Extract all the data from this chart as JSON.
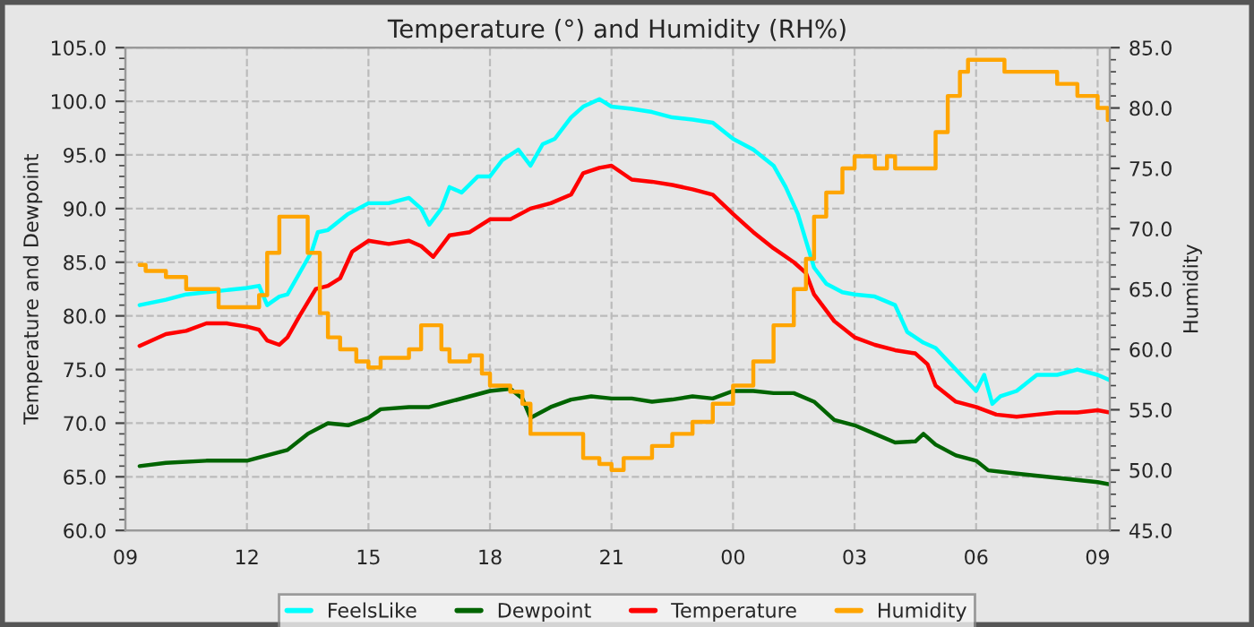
{
  "chart_data": {
    "type": "line",
    "title": "Temperature (°) and Humidity (RH%)",
    "ylabel": "Temperature and Dewpoint",
    "y2label": "Humidity",
    "xlim": [
      9,
      33.3
    ],
    "xticks": [
      {
        "value": 9,
        "label": "09"
      },
      {
        "value": 12,
        "label": "12"
      },
      {
        "value": 15,
        "label": "15"
      },
      {
        "value": 18,
        "label": "18"
      },
      {
        "value": 21,
        "label": "21"
      },
      {
        "value": 24,
        "label": "00"
      },
      {
        "value": 27,
        "label": "03"
      },
      {
        "value": 30,
        "label": "06"
      },
      {
        "value": 33,
        "label": "09"
      }
    ],
    "ylim": [
      60,
      105
    ],
    "yticks": [
      {
        "value": 60,
        "label": "60.0"
      },
      {
        "value": 65,
        "label": "65.0"
      },
      {
        "value": 70,
        "label": "70.0"
      },
      {
        "value": 75,
        "label": "75.0"
      },
      {
        "value": 80,
        "label": "80.0"
      },
      {
        "value": 85,
        "label": "85.0"
      },
      {
        "value": 90,
        "label": "90.0"
      },
      {
        "value": 95,
        "label": "95.0"
      },
      {
        "value": 100,
        "label": "100.0"
      },
      {
        "value": 105,
        "label": "105.0"
      }
    ],
    "y2lim": [
      45,
      85
    ],
    "y2ticks": [
      {
        "value": 45,
        "label": "45.0"
      },
      {
        "value": 50,
        "label": "50.0"
      },
      {
        "value": 55,
        "label": "55.0"
      },
      {
        "value": 60,
        "label": "60.0"
      },
      {
        "value": 65,
        "label": "65.0"
      },
      {
        "value": 70,
        "label": "70.0"
      },
      {
        "value": 75,
        "label": "75.0"
      },
      {
        "value": 80,
        "label": "80.0"
      },
      {
        "value": 85,
        "label": "85.0"
      }
    ],
    "grid": true,
    "legend": "bottom",
    "line_style": "solid",
    "marker": "none",
    "series": [
      {
        "name": "FeelsLike",
        "color": "#00ffff",
        "x": [
          9.35,
          10,
          10.5,
          11,
          11.5,
          12,
          12.3,
          12.5,
          12.8,
          13,
          13.3,
          13.6,
          13.75,
          14,
          14.5,
          15,
          15.5,
          16,
          16.3,
          16.5,
          16.8,
          17,
          17.3,
          17.7,
          18,
          18.3,
          18.7,
          19,
          19.3,
          19.6,
          20,
          20.3,
          20.7,
          21,
          21.5,
          22,
          22.5,
          23,
          23.5,
          24,
          24.5,
          25,
          25.3,
          25.6,
          25.8,
          26,
          26.3,
          26.7,
          27,
          27.5,
          28,
          28.3,
          28.7,
          29,
          29.5,
          30,
          30.2,
          30.4,
          30.6,
          31,
          31.5,
          32,
          32.5,
          33,
          33.3
        ],
        "values": [
          81.0,
          81.5,
          82,
          82.2,
          82.4,
          82.6,
          82.8,
          81.0,
          81.8,
          82,
          84,
          86,
          87.8,
          88,
          89.5,
          90.5,
          90.5,
          91,
          90,
          88.5,
          90,
          92,
          91.5,
          93,
          93,
          94.5,
          95.5,
          94,
          96,
          96.5,
          98.5,
          99.5,
          100.2,
          99.5,
          99.3,
          99,
          98.5,
          98.3,
          98,
          96.5,
          95.5,
          94,
          92,
          89.5,
          87,
          84.5,
          83,
          82.2,
          82,
          81.8,
          81,
          78.5,
          77.5,
          77,
          75,
          73,
          74.5,
          71.8,
          72.5,
          73,
          74.5,
          74.5,
          75,
          74.5,
          74
        ]
      },
      {
        "name": "Dewpoint",
        "color": "#006400",
        "x": [
          9.35,
          10,
          11,
          11.5,
          12,
          12.5,
          13,
          13.5,
          14,
          14.5,
          15,
          15.3,
          16,
          16.5,
          17,
          17.5,
          18,
          18.5,
          18.8,
          19,
          19.5,
          20,
          20.5,
          21,
          21.5,
          22,
          22.5,
          23,
          23.5,
          24,
          24.5,
          25,
          25.5,
          26,
          26.5,
          27,
          27.5,
          28,
          28.5,
          28.7,
          29,
          29.5,
          30,
          30.3,
          31,
          32,
          33,
          33.3
        ],
        "values": [
          66,
          66.3,
          66.5,
          66.5,
          66.5,
          67,
          67.5,
          69,
          70,
          69.8,
          70.5,
          71.3,
          71.5,
          71.5,
          72,
          72.5,
          73,
          73.2,
          72.3,
          70.5,
          71.5,
          72.2,
          72.5,
          72.3,
          72.3,
          72,
          72.2,
          72.5,
          72.3,
          73,
          73,
          72.8,
          72.8,
          72,
          70.3,
          69.8,
          69,
          68.2,
          68.3,
          69,
          68,
          67,
          66.5,
          65.6,
          65.3,
          64.9,
          64.5,
          64.3
        ]
      },
      {
        "name": "Temperature",
        "color": "#ff0000",
        "x": [
          9.35,
          10,
          10.5,
          11,
          11.5,
          12,
          12.3,
          12.5,
          12.8,
          13,
          13.3,
          13.7,
          14,
          14.3,
          14.6,
          15,
          15.5,
          16,
          16.3,
          16.6,
          17,
          17.5,
          18,
          18.5,
          19,
          19.5,
          20,
          20.3,
          20.7,
          21,
          21.5,
          22,
          22.5,
          23,
          23.5,
          24,
          24.5,
          25,
          25.5,
          25.8,
          26,
          26.5,
          27,
          27.5,
          28,
          28.5,
          28.8,
          29,
          29.5,
          30,
          30.5,
          31,
          31.5,
          32,
          32.5,
          33,
          33.3
        ],
        "values": [
          77.2,
          78.3,
          78.6,
          79.3,
          79.3,
          79,
          78.7,
          77.7,
          77.3,
          78,
          80,
          82.5,
          82.8,
          83.5,
          86,
          87,
          86.7,
          87,
          86.5,
          85.5,
          87.5,
          87.8,
          89,
          89,
          90,
          90.5,
          91.3,
          93.3,
          93.8,
          94,
          92.7,
          92.5,
          92.2,
          91.8,
          91.3,
          89.5,
          87.8,
          86.3,
          85,
          84,
          82,
          79.5,
          78,
          77.3,
          76.8,
          76.5,
          75.5,
          73.5,
          72,
          71.5,
          70.8,
          70.6,
          70.8,
          71,
          71,
          71.2,
          71
        ]
      },
      {
        "name": "Humidity",
        "color": "#ffa500",
        "type": "step",
        "axis": "y2",
        "x": [
          9.35,
          9.5,
          10,
          10.5,
          11,
          11.3,
          12,
          12.3,
          12.5,
          12.8,
          13.2,
          13.5,
          13.8,
          14,
          14.3,
          14.7,
          15,
          15.3,
          16,
          16.3,
          16.6,
          16.8,
          17,
          17.5,
          17.8,
          18,
          18.5,
          18.8,
          19,
          19.5,
          20,
          20.3,
          20.7,
          21,
          21.3,
          21.7,
          22,
          22.5,
          23,
          23.5,
          24,
          24.5,
          25,
          25.5,
          25.8,
          26,
          26.3,
          26.7,
          27,
          27.5,
          27.8,
          28,
          28.8,
          29,
          29.3,
          29.6,
          29.8,
          30.5,
          30.7,
          31,
          31.5,
          32,
          32.5,
          33,
          33.25
        ],
        "values": [
          67,
          66.5,
          66,
          65,
          65,
          63.5,
          63.5,
          64.5,
          68,
          71,
          71,
          68,
          63,
          61,
          60,
          59,
          58.5,
          59.3,
          60,
          62,
          62,
          60,
          59,
          59.5,
          58,
          57,
          56.5,
          55.5,
          53,
          53,
          53,
          51,
          50.5,
          50,
          51,
          51,
          52,
          53,
          54,
          55.5,
          57,
          59,
          62,
          65,
          67.5,
          71,
          73,
          75,
          76,
          75,
          76,
          75,
          75,
          78,
          81,
          83,
          84,
          84,
          83,
          83,
          83,
          82,
          81,
          80,
          79
        ]
      }
    ]
  }
}
